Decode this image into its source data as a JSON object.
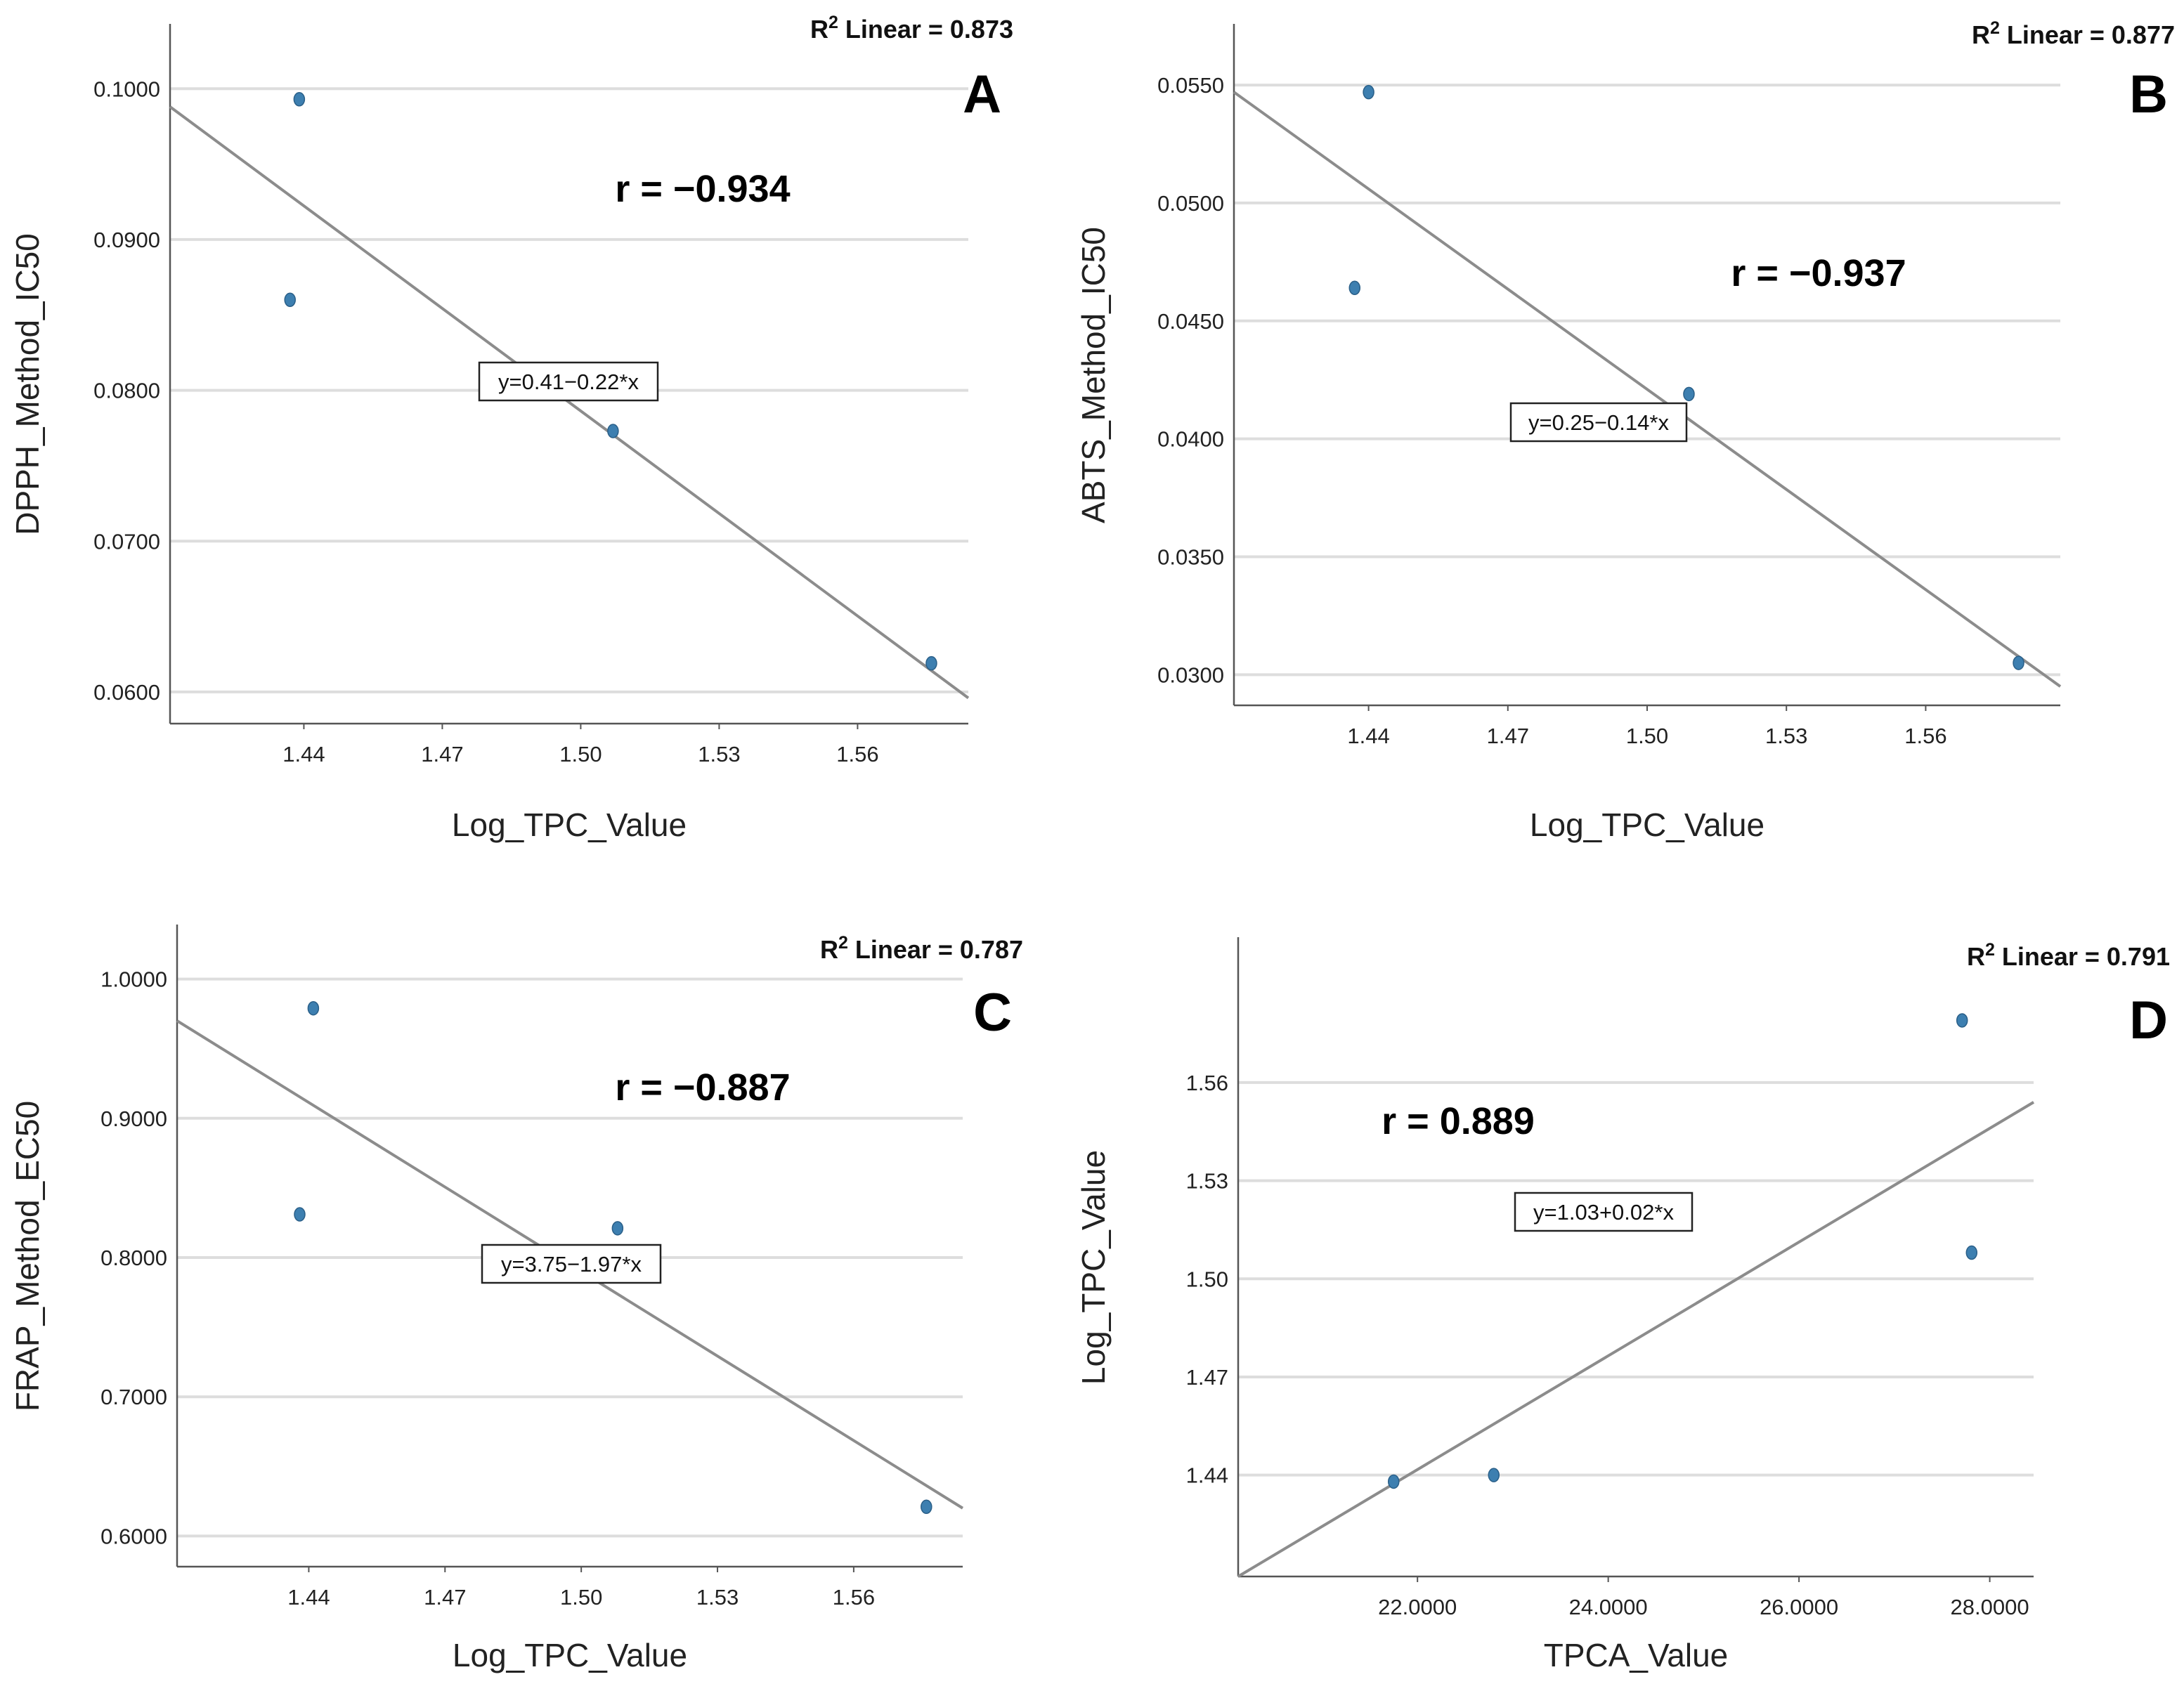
{
  "colors": {
    "point": "#3d7fb0",
    "fit_line": "#8c8c8c",
    "grid": "#dddddd",
    "axis": "#555555"
  },
  "chart_data": [
    {
      "type": "scatter",
      "panel": "A",
      "xlabel": "Log_TPC_Value",
      "ylabel": "DPPH_Method_IC50",
      "r2_prefix": "R",
      "r2_sup": "2",
      "r2_text": " Linear = 0.873",
      "r_text": "r = −0.934",
      "equation": "y=0.41−0.22*x",
      "xlim": [
        1.411,
        1.584
      ],
      "ylim": [
        0.0579,
        0.1029
      ],
      "xticks": [
        1.44,
        1.47,
        1.5,
        1.53,
        1.56
      ],
      "xtick_labels": [
        "1.44",
        "1.47",
        "1.50",
        "1.53",
        "1.56"
      ],
      "yticks": [
        0.06,
        0.07,
        0.08,
        0.09,
        0.1
      ],
      "ytick_labels": [
        "0.0600",
        "0.0700",
        "0.0800",
        "0.0900",
        "0.1000"
      ],
      "points": [
        [
          1.439,
          0.0993
        ],
        [
          1.437,
          0.086
        ],
        [
          1.507,
          0.0773
        ],
        [
          1.576,
          0.0619
        ]
      ],
      "fit": [
        [
          1.411,
          0.0988
        ],
        [
          1.584,
          0.0596
        ]
      ]
    },
    {
      "type": "scatter",
      "panel": "B",
      "xlabel": "Log_TPC_Value",
      "ylabel": "ABTS_Method_IC50",
      "r2_prefix": "R",
      "r2_sup": "2",
      "r2_text": " Linear = 0.877",
      "r_text": "r = −0.937",
      "equation": "y=0.25−0.14*x",
      "xlim": [
        1.411,
        1.589
      ],
      "ylim": [
        0.0287,
        0.0567
      ],
      "xticks": [
        1.44,
        1.47,
        1.5,
        1.53,
        1.56
      ],
      "xtick_labels": [
        "1.44",
        "1.47",
        "1.50",
        "1.53",
        "1.56"
      ],
      "yticks": [
        0.03,
        0.035,
        0.04,
        0.045,
        0.05,
        0.055
      ],
      "ytick_labels": [
        "0.0300",
        "0.0350",
        "0.0400",
        "0.0450",
        "0.0500",
        "0.0550"
      ],
      "points": [
        [
          1.44,
          0.0547
        ],
        [
          1.437,
          0.0464
        ],
        [
          1.509,
          0.0419
        ],
        [
          1.58,
          0.0305
        ]
      ],
      "fit": [
        [
          1.411,
          0.0547
        ],
        [
          1.589,
          0.0295
        ]
      ]
    },
    {
      "type": "scatter",
      "panel": "C",
      "xlabel": "Log_TPC_Value",
      "ylabel": "FRAP_Method_EC50",
      "r2_prefix": "R",
      "r2_sup": "2",
      "r2_text": " Linear = 0.787",
      "r_text": "r = −0.887",
      "equation": "y=3.75−1.97*x",
      "xlim": [
        1.411,
        1.584
      ],
      "ylim": [
        0.578,
        1.024
      ],
      "xticks": [
        1.44,
        1.47,
        1.5,
        1.53,
        1.56
      ],
      "xtick_labels": [
        "1.44",
        "1.47",
        "1.50",
        "1.53",
        "1.56"
      ],
      "yticks": [
        0.6,
        0.7,
        0.8,
        0.9,
        1.0
      ],
      "ytick_labels": [
        "0.6000",
        "0.7000",
        "0.8000",
        "0.9000",
        "1.0000"
      ],
      "points": [
        [
          1.441,
          0.979
        ],
        [
          1.438,
          0.831
        ],
        [
          1.508,
          0.821
        ],
        [
          1.576,
          0.621
        ]
      ],
      "fit": [
        [
          1.411,
          0.97
        ],
        [
          1.584,
          0.62
        ]
      ]
    },
    {
      "type": "scatter",
      "panel": "D",
      "xlabel": "TPCA_Value",
      "ylabel": "Log_TPC_Value",
      "r2_prefix": "R",
      "r2_sup": "2",
      "r2_text": " Linear = 0.791",
      "r_text": "r = 0.889",
      "equation": "y=1.03+0.02*x",
      "xlim": [
        20.12,
        28.46
      ],
      "ylim": [
        1.409,
        1.598
      ],
      "xticks": [
        22,
        24,
        26,
        28
      ],
      "xtick_labels": [
        "22.0000",
        "24.0000",
        "26.0000",
        "28.0000"
      ],
      "yticks": [
        1.44,
        1.47,
        1.5,
        1.53,
        1.56
      ],
      "ytick_labels": [
        "1.44",
        "1.47",
        "1.50",
        "1.53",
        "1.56"
      ],
      "points": [
        [
          21.75,
          1.438
        ],
        [
          22.8,
          1.44
        ],
        [
          27.71,
          1.579
        ],
        [
          27.81,
          1.508
        ]
      ],
      "fit": [
        [
          20.12,
          1.409
        ],
        [
          28.46,
          1.554
        ]
      ]
    }
  ]
}
